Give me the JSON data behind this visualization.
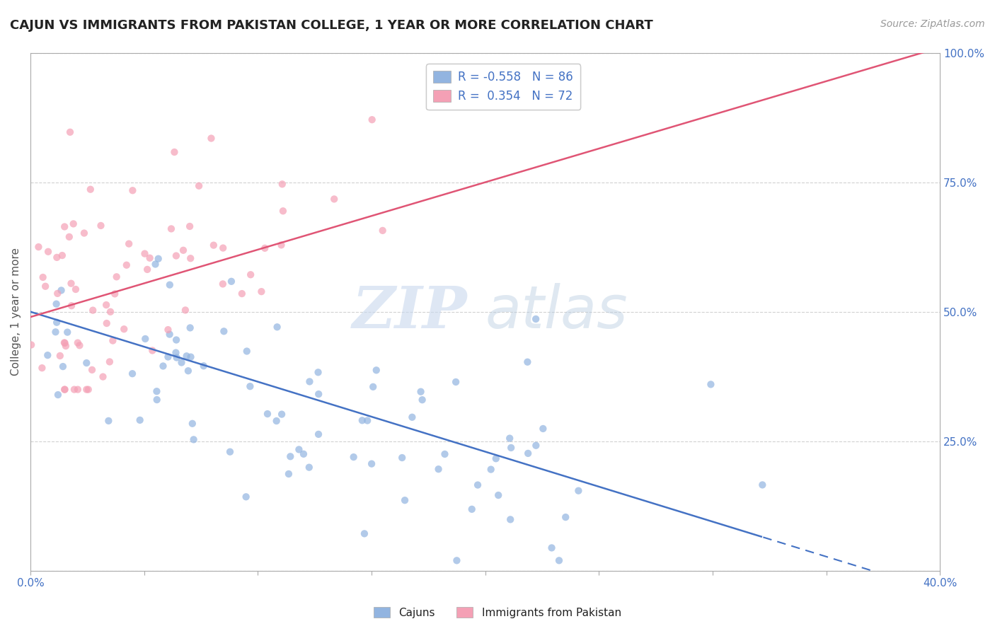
{
  "title": "CAJUN VS IMMIGRANTS FROM PAKISTAN COLLEGE, 1 YEAR OR MORE CORRELATION CHART",
  "source": "Source: ZipAtlas.com",
  "ylabel": "College, 1 year or more",
  "xlim": [
    0.0,
    0.4
  ],
  "ylim": [
    0.0,
    1.0
  ],
  "cajun_R": -0.558,
  "cajun_N": 86,
  "pakistan_R": 0.354,
  "pakistan_N": 72,
  "cajun_color": "#92b4e0",
  "pakistan_color": "#f4a0b5",
  "cajun_line_color": "#4472c4",
  "pakistan_line_color": "#e05575",
  "legend_label_cajun": "Cajuns",
  "legend_label_pakistan": "Immigrants from Pakistan",
  "watermark_zip": "ZIP",
  "watermark_atlas": "atlas",
  "background_color": "#ffffff",
  "grid_color": "#cccccc",
  "cajun_line_intercept": 0.5,
  "cajun_line_slope": -1.35,
  "pakistan_line_intercept": 0.49,
  "pakistan_line_slope": 1.3
}
